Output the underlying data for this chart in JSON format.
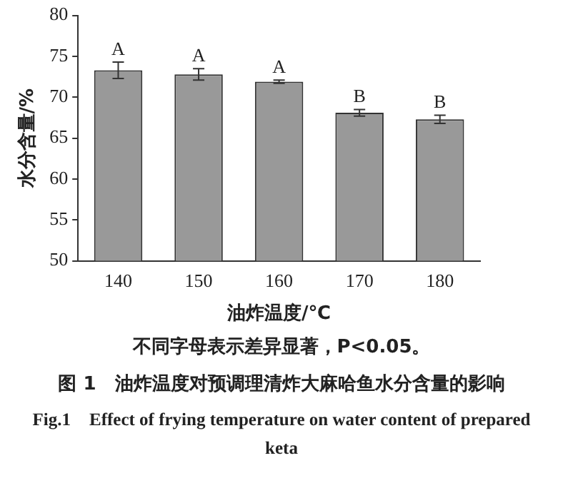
{
  "chart_data": {
    "type": "bar",
    "title": "图 1　油炸温度对预调理清炸大麻哈鱼水分含量的影响",
    "subtitle": "Fig.1　Effect of frying temperature on water content of prepared keta",
    "xlabel": "油炸温度/℃",
    "ylabel": "水分含量/%",
    "categories": [
      "140",
      "150",
      "160",
      "170",
      "180"
    ],
    "values": [
      73.3,
      72.8,
      71.9,
      68.1,
      67.3
    ],
    "errors": [
      1.0,
      0.7,
      0.2,
      0.4,
      0.5
    ],
    "color": "#999999",
    "ylim": [
      50,
      80
    ],
    "yticks": [
      50,
      55,
      60,
      65,
      70,
      75,
      80
    ],
    "grid": false,
    "annotations": [
      {
        "text": "A",
        "x": "140",
        "y": 74.3
      },
      {
        "text": "A",
        "x": "150",
        "y": 73.5
      },
      {
        "text": "A",
        "x": "160",
        "y": 72.1
      },
      {
        "text": "B",
        "x": "170",
        "y": 68.5
      },
      {
        "text": "B",
        "x": "180",
        "y": 67.8
      },
      "不同字母表示差异显著，P<0.05。"
    ]
  }
}
